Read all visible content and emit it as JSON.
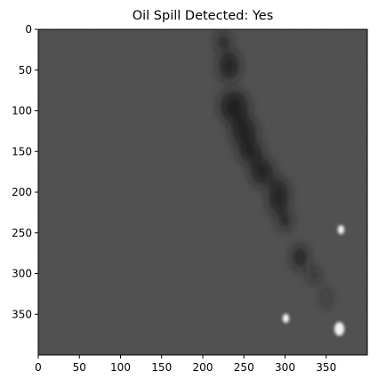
{
  "figure": {
    "title": "Oil Spill Detected: Yes"
  },
  "image_axes": {
    "x_ticks": [
      0,
      50,
      100,
      150,
      200,
      250,
      300,
      350
    ],
    "y_ticks": [
      0,
      50,
      100,
      150,
      200,
      250,
      300,
      350
    ],
    "x_range": [
      0,
      400
    ],
    "y_range": [
      0,
      400
    ],
    "y_inverted": true,
    "grid": false
  },
  "image": {
    "colormap": "grayscale",
    "background_color": "#4a4a4a",
    "dark_region_color": "#141414",
    "bright_spot_color": "#f2f2f2",
    "dark_slick": [
      {
        "x": 225,
        "y": 15,
        "rx": 8,
        "ry": 10
      },
      {
        "x": 232,
        "y": 45,
        "rx": 12,
        "ry": 18
      },
      {
        "x": 238,
        "y": 95,
        "rx": 17,
        "ry": 20
      },
      {
        "x": 250,
        "y": 125,
        "rx": 15,
        "ry": 18
      },
      {
        "x": 258,
        "y": 150,
        "rx": 14,
        "ry": 14
      },
      {
        "x": 272,
        "y": 175,
        "rx": 14,
        "ry": 16
      },
      {
        "x": 292,
        "y": 205,
        "rx": 12,
        "ry": 22
      },
      {
        "x": 300,
        "y": 235,
        "rx": 8,
        "ry": 10
      },
      {
        "x": 318,
        "y": 280,
        "rx": 9,
        "ry": 14
      },
      {
        "x": 335,
        "y": 302,
        "rx": 6,
        "ry": 8
      },
      {
        "x": 350,
        "y": 330,
        "rx": 3,
        "ry": 12
      }
    ],
    "bright_spots": [
      {
        "x": 368,
        "y": 246,
        "r": 4
      },
      {
        "x": 301,
        "y": 355,
        "r": 4
      },
      {
        "x": 366,
        "y": 368,
        "r": 6
      }
    ]
  }
}
